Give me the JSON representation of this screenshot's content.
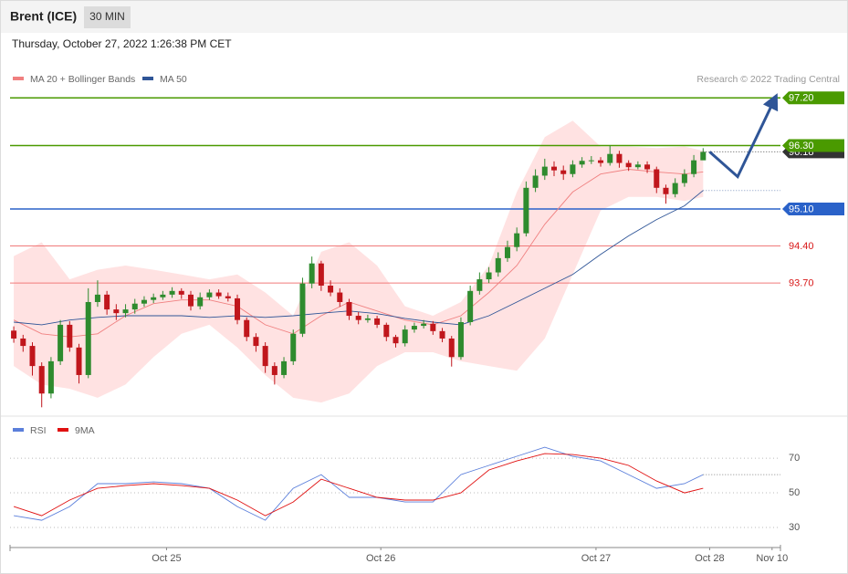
{
  "header": {
    "title": "Brent (ICE)",
    "timeframe": "30 MIN",
    "timestamp": "Thursday, October 27, 2022 1:26:38 PM CET",
    "copyright": "Research © 2022 Trading Central"
  },
  "chart_data": [
    {
      "type": "candlestick",
      "xlim": [
        -0.4,
        82.3
      ],
      "ylim": [
        91.2,
        98.43
      ],
      "up_color": "#2e8b2e",
      "down_color": "#c0161c",
      "candles": [
        [
          92.8,
          92.88,
          92.57,
          92.65
        ],
        [
          92.65,
          92.72,
          92.4,
          92.51
        ],
        [
          92.51,
          92.58,
          91.95,
          92.13
        ],
        [
          92.13,
          92.2,
          91.35,
          91.61
        ],
        [
          91.61,
          92.3,
          91.52,
          92.22
        ],
        [
          92.22,
          93.0,
          92.15,
          92.91
        ],
        [
          92.91,
          92.98,
          92.4,
          92.48
        ],
        [
          92.48,
          92.55,
          91.8,
          91.96
        ],
        [
          91.96,
          93.6,
          91.9,
          93.34
        ],
        [
          93.34,
          93.75,
          93.25,
          93.48
        ],
        [
          93.48,
          93.55,
          93.1,
          93.2
        ],
        [
          93.2,
          93.3,
          93.0,
          93.13
        ],
        [
          93.13,
          93.3,
          93.05,
          93.2
        ],
        [
          93.2,
          93.4,
          93.12,
          93.31
        ],
        [
          93.31,
          93.45,
          93.25,
          93.38
        ],
        [
          93.38,
          93.5,
          93.32,
          93.43
        ],
        [
          93.43,
          93.55,
          93.38,
          93.48
        ],
        [
          93.48,
          93.62,
          93.42,
          93.55
        ],
        [
          93.55,
          93.6,
          93.4,
          93.48
        ],
        [
          93.48,
          93.55,
          93.18,
          93.26
        ],
        [
          93.26,
          93.52,
          93.2,
          93.43
        ],
        [
          93.43,
          93.58,
          93.38,
          93.52
        ],
        [
          93.52,
          93.58,
          93.4,
          93.45
        ],
        [
          93.45,
          93.52,
          93.35,
          93.41
        ],
        [
          93.41,
          93.48,
          92.92,
          93.0
        ],
        [
          93.0,
          93.05,
          92.6,
          92.68
        ],
        [
          92.68,
          92.75,
          92.4,
          92.51
        ],
        [
          92.51,
          92.58,
          92.0,
          92.13
        ],
        [
          92.13,
          92.2,
          91.78,
          91.96
        ],
        [
          91.96,
          92.3,
          91.9,
          92.22
        ],
        [
          92.22,
          92.82,
          92.15,
          92.74
        ],
        [
          92.74,
          93.8,
          92.68,
          93.69
        ],
        [
          93.69,
          94.2,
          93.6,
          94.07
        ],
        [
          94.07,
          94.12,
          93.55,
          93.65
        ],
        [
          93.65,
          93.75,
          93.45,
          93.52
        ],
        [
          93.52,
          93.6,
          93.25,
          93.34
        ],
        [
          93.34,
          93.4,
          93.0,
          93.08
        ],
        [
          93.08,
          93.15,
          92.92,
          93.0
        ],
        [
          93.0,
          93.1,
          92.95,
          93.03
        ],
        [
          93.03,
          93.08,
          92.85,
          92.91
        ],
        [
          92.91,
          92.95,
          92.6,
          92.68
        ],
        [
          92.68,
          92.72,
          92.48,
          92.56
        ],
        [
          92.56,
          92.9,
          92.5,
          92.82
        ],
        [
          92.82,
          92.95,
          92.76,
          92.89
        ],
        [
          92.89,
          93.0,
          92.84,
          92.93
        ],
        [
          92.93,
          92.98,
          92.72,
          92.79
        ],
        [
          92.79,
          92.85,
          92.58,
          92.65
        ],
        [
          92.65,
          92.7,
          92.12,
          92.3
        ],
        [
          92.3,
          93.05,
          92.25,
          92.96
        ],
        [
          92.96,
          93.65,
          92.9,
          93.55
        ],
        [
          93.55,
          93.9,
          93.48,
          93.77
        ],
        [
          93.77,
          94.0,
          93.7,
          93.9
        ],
        [
          93.9,
          94.28,
          93.82,
          94.17
        ],
        [
          94.17,
          94.5,
          94.1,
          94.38
        ],
        [
          94.38,
          94.75,
          94.3,
          94.64
        ],
        [
          94.64,
          95.62,
          94.58,
          95.5
        ],
        [
          95.5,
          95.85,
          95.42,
          95.73
        ],
        [
          95.73,
          96.05,
          95.65,
          95.9
        ],
        [
          95.9,
          96.0,
          95.72,
          95.83
        ],
        [
          95.83,
          95.92,
          95.65,
          95.76
        ],
        [
          95.76,
          96.02,
          95.7,
          95.94
        ],
        [
          95.94,
          96.08,
          95.88,
          96.01
        ],
        [
          96.01,
          96.1,
          95.95,
          96.02
        ],
        [
          96.02,
          96.08,
          95.9,
          95.97
        ],
        [
          95.97,
          96.3,
          95.92,
          96.14
        ],
        [
          96.14,
          96.2,
          95.88,
          95.97
        ],
        [
          95.97,
          96.02,
          95.82,
          95.89
        ],
        [
          95.89,
          96.0,
          95.85,
          95.94
        ],
        [
          95.94,
          96.0,
          95.78,
          95.85
        ],
        [
          95.85,
          95.9,
          95.4,
          95.5
        ],
        [
          95.5,
          95.56,
          95.2,
          95.38
        ],
        [
          95.38,
          95.68,
          95.32,
          95.59
        ],
        [
          95.59,
          95.85,
          95.52,
          95.76
        ],
        [
          95.76,
          96.12,
          95.7,
          96.02
        ],
        [
          96.02,
          96.25,
          96.05,
          96.18
        ]
      ],
      "indicator_x": [
        0,
        3,
        6,
        9,
        12,
        15,
        18,
        21,
        24,
        27,
        30,
        33,
        36,
        39,
        42,
        45,
        48,
        51,
        54,
        57,
        60,
        63,
        66,
        69,
        72,
        74
      ],
      "series": [
        {
          "name": "MA 20 + Bollinger Bands",
          "color": "#f08080",
          "band_color": "#ffe2e2",
          "values": [
            93.0,
            92.74,
            92.68,
            92.74,
            93.08,
            93.31,
            93.38,
            93.38,
            93.26,
            92.91,
            92.74,
            93.08,
            93.34,
            93.17,
            93.0,
            92.91,
            93.08,
            93.52,
            94.03,
            94.81,
            95.42,
            95.76,
            95.85,
            95.8,
            95.76,
            95.8
          ],
          "upper": [
            94.21,
            94.47,
            93.77,
            93.95,
            94.03,
            93.95,
            93.86,
            93.77,
            93.86,
            93.52,
            93.08,
            94.29,
            94.47,
            94.03,
            93.26,
            93.08,
            93.34,
            94.03,
            95.42,
            96.46,
            96.77,
            96.28,
            96.28,
            96.25,
            96.28,
            96.2
          ],
          "lower": [
            92.13,
            91.78,
            91.7,
            91.53,
            91.78,
            92.3,
            92.74,
            92.91,
            92.48,
            91.96,
            91.53,
            91.44,
            91.61,
            92.13,
            92.39,
            92.39,
            92.22,
            92.13,
            92.04,
            92.65,
            93.86,
            95.07,
            95.33,
            95.33,
            95.25,
            95.33
          ]
        },
        {
          "name": "MA 50",
          "color": "#2f5597",
          "values": [
            92.96,
            92.91,
            93.0,
            93.05,
            93.08,
            93.08,
            93.08,
            93.05,
            93.08,
            93.05,
            93.08,
            93.13,
            93.17,
            93.12,
            93.03,
            92.96,
            92.91,
            93.08,
            93.34,
            93.6,
            93.86,
            94.24,
            94.59,
            94.9,
            95.16,
            95.45
          ]
        }
      ],
      "levels": [
        {
          "value": 97.2,
          "label": "97.20",
          "color": "#4a9a00",
          "tag": true
        },
        {
          "value": 96.3,
          "label": "96.30",
          "color": "#4a9a00",
          "tag": true
        },
        {
          "value": 95.1,
          "label": "95.10",
          "color": "#2a62c9",
          "tag": true
        },
        {
          "value": 94.4,
          "label": "94.40",
          "color": "#f07a7a",
          "tag": false
        },
        {
          "value": 93.7,
          "label": "93.70",
          "color": "#f07a7a",
          "tag": false
        }
      ],
      "last_price": 96.18,
      "forecast": {
        "color": "#2f5597",
        "x": [
          74.7,
          77.7,
          81.6
        ],
        "values": [
          96.18,
          95.71,
          97.15
        ]
      }
    },
    {
      "type": "line",
      "xlim": [
        -0.4,
        82.3
      ],
      "ylim": [
        19.5,
        93.2
      ],
      "yticks": [
        70,
        50,
        30
      ],
      "x": [
        0,
        3,
        6,
        9,
        12,
        15,
        18,
        21,
        24,
        27,
        30,
        33,
        36,
        39,
        42,
        45,
        48,
        51,
        54,
        57,
        60,
        63,
        66,
        69,
        72,
        74
      ],
      "xticks": [
        {
          "value": 16.4,
          "label": "Oct 25"
        },
        {
          "value": 39.4,
          "label": "Oct 26"
        },
        {
          "value": 62.5,
          "label": "Oct 27"
        },
        {
          "value": 74.7,
          "label": "Oct 28"
        },
        {
          "value": 81.4,
          "label": "Nov 10"
        }
      ],
      "series": [
        {
          "name": "RSI",
          "color": "#5b7fdb",
          "values": [
            36.8,
            34.2,
            42.1,
            55.3,
            55.3,
            56.3,
            55.3,
            52.6,
            42.1,
            34.2,
            52.6,
            60.5,
            47.4,
            47.4,
            44.7,
            44.7,
            60.5,
            65.8,
            71.1,
            76.3,
            71.1,
            68.4,
            60.5,
            52.6,
            55.3,
            60.5
          ]
        },
        {
          "name": "9MA",
          "color": "#e01010",
          "values": [
            42.1,
            36.8,
            45.8,
            52.6,
            54.2,
            55.3,
            54.2,
            52.6,
            45.8,
            36.8,
            44.7,
            57.9,
            52.6,
            47.4,
            45.8,
            45.8,
            50.0,
            63.2,
            68.4,
            72.6,
            72.1,
            70.0,
            65.8,
            56.8,
            50.0,
            52.6
          ]
        }
      ]
    }
  ]
}
